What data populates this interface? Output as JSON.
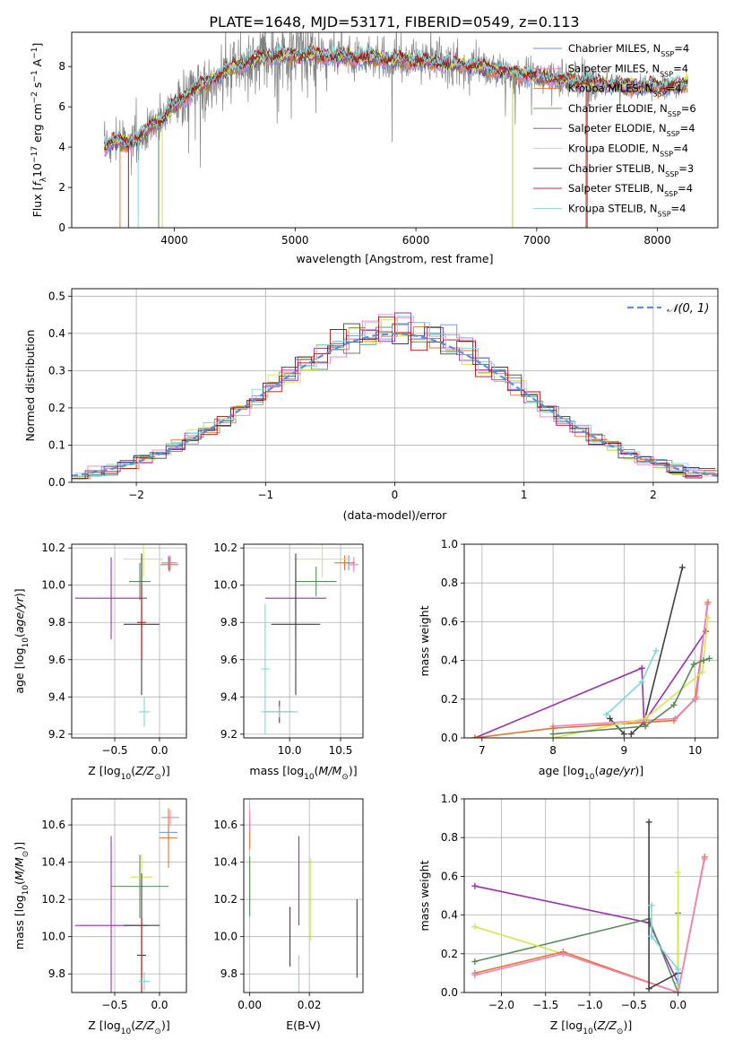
{
  "figure_title": "PLATE=1648, MJD=53171, FIBERID=0549, z=0.113",
  "colors": {
    "chabrier_miles": "#6495ed",
    "salpeter_miles": "#f080c0",
    "kroupa_miles": "#e8742a",
    "chabrier_elodie": "#5a8a5a",
    "salpeter_elodie": "#9a2fb0",
    "kroupa_elodie": "#d4e84a",
    "chabrier_stelib": "#404040",
    "salpeter_stelib": "#b01010",
    "kroupa_stelib": "#7fd8d8",
    "data": "#808080",
    "gauss": "#5b8fd9"
  },
  "chart_data": [
    {
      "id": "spectrum",
      "type": "line",
      "xlabel": "wavelength [Angstrom, rest frame]",
      "ylabel": "Flux [f_λ10^-17 erg cm^-2 s^-1 A^-1]",
      "xlim": [
        3150,
        8500
      ],
      "ylim": [
        0,
        9.7
      ],
      "xticks": [
        4000,
        5000,
        6000,
        7000,
        8000
      ],
      "yticks": [
        0,
        2,
        4,
        6,
        8
      ],
      "legend": [
        {
          "label": "Chabrier MILES, N_SSP=4",
          "key": "chabrier_miles"
        },
        {
          "label": "Salpeter MILES, N_SSP=4",
          "key": "salpeter_miles"
        },
        {
          "label": "Kroupa MILES, N_SSP=4",
          "key": "kroupa_miles"
        },
        {
          "label": "Chabrier ELODIE, N_SSP=6",
          "key": "chabrier_elodie"
        },
        {
          "label": "Salpeter ELODIE, N_SSP=4",
          "key": "salpeter_elodie"
        },
        {
          "label": "Kroupa ELODIE, N_SSP=4",
          "key": "kroupa_elodie"
        },
        {
          "label": "Chabrier STELIB, N_SSP=3",
          "key": "chabrier_stelib"
        },
        {
          "label": "Salpeter STELIB, N_SSP=4",
          "key": "salpeter_stelib"
        },
        {
          "label": "Kroupa STELIB, N_SSP=4",
          "key": "kroupa_stelib"
        }
      ],
      "continuum": [
        [
          3420,
          4.0
        ],
        [
          3500,
          4.3
        ],
        [
          3600,
          4.2
        ],
        [
          3700,
          4.4
        ],
        [
          3800,
          5.0
        ],
        [
          3900,
          5.4
        ],
        [
          4000,
          6.0
        ],
        [
          4100,
          6.5
        ],
        [
          4200,
          7.0
        ],
        [
          4300,
          7.3
        ],
        [
          4400,
          7.7
        ],
        [
          4500,
          8.0
        ],
        [
          4600,
          8.2
        ],
        [
          4700,
          8.4
        ],
        [
          4800,
          8.5
        ],
        [
          4900,
          8.55
        ],
        [
          5000,
          8.6
        ],
        [
          5200,
          8.55
        ],
        [
          5400,
          8.5
        ],
        [
          5600,
          8.4
        ],
        [
          5800,
          8.35
        ],
        [
          6000,
          8.25
        ],
        [
          6200,
          8.15
        ],
        [
          6400,
          8.05
        ],
        [
          6600,
          7.9
        ],
        [
          6800,
          7.7
        ],
        [
          7000,
          7.5
        ],
        [
          7200,
          7.35
        ],
        [
          7400,
          7.2
        ],
        [
          7600,
          7.1
        ],
        [
          7800,
          7.0
        ],
        [
          8000,
          7.0
        ],
        [
          8250,
          7.1
        ]
      ]
    },
    {
      "id": "residuals",
      "type": "histogram",
      "xlabel": "(data-model)/error",
      "ylabel": "Normed distribution",
      "xlim": [
        -2.5,
        2.5
      ],
      "ylim": [
        0,
        0.52
      ],
      "xticks": [
        -2,
        -1,
        0,
        1,
        2
      ],
      "yticks": [
        0.0,
        0.1,
        0.2,
        0.3,
        0.4,
        0.5
      ],
      "legend": "𝒩(0, 1)"
    },
    {
      "id": "z_age",
      "type": "errorbar",
      "xlabel": "Z [log10(Z/Z⊙)]",
      "ylabel": "age [log10(age/yr)]",
      "xlim": [
        -0.98,
        0.3
      ],
      "ylim": [
        9.18,
        10.22
      ],
      "xticks": [
        -0.5,
        0.0
      ],
      "yticks": [
        9.2,
        9.4,
        9.6,
        9.8,
        10.0,
        10.2
      ],
      "points": [
        {
          "key": "chabrier_miles",
          "x": 0.1,
          "y": 10.12,
          "xe": 0.08,
          "ye": 0.04
        },
        {
          "key": "salpeter_miles",
          "x": 0.12,
          "y": 10.12,
          "xe": 0.08,
          "ye": 0.04
        },
        {
          "key": "kroupa_miles",
          "x": 0.11,
          "y": 10.11,
          "xe": 0.1,
          "ye": 0.04
        },
        {
          "key": "chabrier_elodie",
          "x": -0.22,
          "y": 10.02,
          "xe": 0.12,
          "ye": 0.1
        },
        {
          "key": "salpeter_elodie",
          "x": -0.54,
          "y": 9.93,
          "xe": 0.4,
          "ye": 0.22
        },
        {
          "key": "kroupa_elodie",
          "x": -0.18,
          "y": 10.14,
          "xe": 0.22,
          "ye": 0.1
        },
        {
          "key": "chabrier_stelib",
          "x": -0.2,
          "y": 9.79,
          "xe": 0.2,
          "ye": 0.38
        },
        {
          "key": "salpeter_stelib",
          "x": -0.2,
          "y": 9.8,
          "xe": 0.05,
          "ye": 0.2
        },
        {
          "key": "kroupa_stelib",
          "x": -0.17,
          "y": 9.32,
          "xe": 0.06,
          "ye": 0.08
        }
      ]
    },
    {
      "id": "mass_age",
      "type": "errorbar",
      "xlabel": "mass [log10(M/M⊙)]",
      "ylabel": "",
      "xlim": [
        9.55,
        10.72
      ],
      "ylim": [
        9.18,
        10.22
      ],
      "xticks": [
        10.0,
        10.5
      ],
      "yticks": [
        9.2,
        9.4,
        9.6,
        9.8,
        10.0,
        10.2
      ],
      "points": [
        {
          "key": "chabrier_miles",
          "x": 10.58,
          "y": 10.12,
          "xe": 0.06,
          "ye": 0.04
        },
        {
          "key": "salpeter_miles",
          "x": 10.63,
          "y": 10.11,
          "xe": 0.05,
          "ye": 0.04
        },
        {
          "key": "kroupa_miles",
          "x": 10.54,
          "y": 10.12,
          "xe": 0.1,
          "ye": 0.04
        },
        {
          "key": "chabrier_elodie",
          "x": 10.26,
          "y": 10.02,
          "xe": 0.2,
          "ye": 0.08
        },
        {
          "key": "salpeter_elodie",
          "x": 10.06,
          "y": 9.93,
          "xe": 0.3,
          "ye": 0.2
        },
        {
          "key": "kroupa_elodie",
          "x": 10.32,
          "y": 10.14,
          "xe": 0.28,
          "ye": 0.1
        },
        {
          "key": "chabrier_stelib",
          "x": 10.06,
          "y": 9.79,
          "xe": 0.24,
          "ye": 0.38
        },
        {
          "key": "salpeter_stelib",
          "x": 9.9,
          "y": 9.32,
          "xe": 0.15,
          "ye": 0.06
        },
        {
          "key": "kroupa_stelib",
          "x": 9.76,
          "y": 9.55,
          "xe": 0.04,
          "ye": 0.35
        },
        {
          "key": "kroupa_stelib",
          "x": 9.9,
          "y": 9.32,
          "xe": 0.18,
          "ye": 0.03
        }
      ]
    },
    {
      "id": "age_weight",
      "type": "line",
      "xlabel": "age [log10(age/yr)]",
      "ylabel": "mass weight",
      "xlim": [
        6.75,
        10.32
      ],
      "ylim": [
        0,
        1.0
      ],
      "xticks": [
        7,
        8,
        9,
        10
      ],
      "yticks": [
        0.0,
        0.2,
        0.4,
        0.6,
        0.8,
        1.0
      ],
      "series": [
        {
          "key": "chabrier_stelib",
          "x": [
            9.1,
            9.28,
            9.82
          ],
          "y": [
            0.02,
            0.08,
            0.88
          ]
        },
        {
          "key": "chabrier_stelib",
          "x": [
            8.8,
            9.0
          ],
          "y": [
            0.1,
            0.02
          ]
        },
        {
          "key": "salpeter_elodie",
          "x": [
            6.9,
            9.25,
            9.28,
            10.15
          ],
          "y": [
            0.0,
            0.36,
            0.08,
            0.55
          ]
        },
        {
          "key": "kroupa_stelib",
          "x": [
            8.75,
            9.25,
            9.45
          ],
          "y": [
            0.12,
            0.29,
            0.45
          ]
        },
        {
          "key": "kroupa_miles",
          "x": [
            8.0,
            9.7,
            10.0,
            10.18
          ],
          "y": [
            0.05,
            0.09,
            0.2,
            0.7
          ]
        },
        {
          "key": "salpeter_miles",
          "x": [
            8.0,
            9.72,
            10.02,
            10.17
          ],
          "y": [
            0.06,
            0.1,
            0.21,
            0.69
          ]
        },
        {
          "key": "kroupa_elodie",
          "x": [
            8.0,
            9.3,
            10.1,
            10.18
          ],
          "y": [
            0.0,
            0.1,
            0.34,
            0.62
          ]
        },
        {
          "key": "chabrier_elodie",
          "x": [
            8.0,
            9.3,
            9.7,
            9.98,
            10.12,
            10.2
          ],
          "y": [
            0.02,
            0.06,
            0.17,
            0.38,
            0.4,
            0.41
          ]
        },
        {
          "key": "kroupa_miles",
          "x": [
            6.9,
            8.0
          ],
          "y": [
            0.0,
            0.05
          ]
        }
      ]
    },
    {
      "id": "z_mass",
      "type": "errorbar",
      "xlabel": "Z [log10(Z/Z⊙)]",
      "ylabel": "mass [log10(M/M⊙)]",
      "xlim": [
        -0.98,
        0.3
      ],
      "ylim": [
        9.7,
        10.74
      ],
      "xticks": [
        -0.5,
        0.0
      ],
      "yticks": [
        9.8,
        10.0,
        10.2,
        10.4,
        10.6
      ],
      "points": [
        {
          "key": "chabrier_miles",
          "x": 0.1,
          "y": 10.56,
          "xe": 0.1,
          "ye": 0.04
        },
        {
          "key": "salpeter_miles",
          "x": 0.12,
          "y": 10.64,
          "xe": 0.1,
          "ye": 0.04
        },
        {
          "key": "kroupa_miles",
          "x": 0.1,
          "y": 10.53,
          "xe": 0.1,
          "ye": 0.16
        },
        {
          "key": "chabrier_elodie",
          "x": -0.22,
          "y": 10.27,
          "xe": 0.32,
          "ye": 0.17
        },
        {
          "key": "salpeter_elodie",
          "x": -0.54,
          "y": 10.06,
          "xe": 0.4,
          "ye": 0.48
        },
        {
          "key": "kroupa_elodie",
          "x": -0.2,
          "y": 10.32,
          "xe": 0.12,
          "ye": 0.12
        },
        {
          "key": "chabrier_stelib",
          "x": -0.2,
          "y": 10.06,
          "xe": 0.2,
          "ye": 0.28
        },
        {
          "key": "salpeter_stelib",
          "x": -0.2,
          "y": 9.9,
          "xe": 0.05,
          "ye": 0.2
        },
        {
          "key": "kroupa_stelib",
          "x": -0.17,
          "y": 9.76,
          "xe": 0.06,
          "ye": 0.05
        }
      ]
    },
    {
      "id": "ebv_mass",
      "type": "errorbar",
      "xlabel": "E(B-V)",
      "ylabel": "",
      "xlim": [
        -0.002,
        0.038
      ],
      "ylim": [
        9.7,
        10.74
      ],
      "xticks": [
        0.0,
        0.02
      ],
      "yticks": [
        9.8,
        10.0,
        10.2,
        10.4,
        10.6
      ],
      "points": [
        {
          "key": "kroupa_miles",
          "x": 0.0,
          "y": 10.55,
          "xe": 0,
          "ye": 0.08
        },
        {
          "key": "salpeter_miles",
          "x": 0.0,
          "y": 10.62,
          "xe": 0,
          "ye": 0.06
        },
        {
          "key": "chabrier_elodie",
          "x": 0.0,
          "y": 10.27,
          "xe": 0,
          "ye": 0.16
        },
        {
          "key": "salpeter_elodie",
          "x": 0.0165,
          "y": 10.3,
          "xe": 0,
          "ye": 0.24
        },
        {
          "key": "kroupa_elodie",
          "x": 0.0205,
          "y": 10.2,
          "xe": 0,
          "ye": 0.22
        },
        {
          "key": "chabrier_stelib",
          "x": 0.036,
          "y": 9.99,
          "xe": 0,
          "ye": 0.21
        },
        {
          "key": "salpeter_stelib",
          "x": 0.0135,
          "y": 10.0,
          "xe": 0,
          "ye": 0.16
        },
        {
          "key": "kroupa_stelib",
          "x": 0.0165,
          "y": 9.8,
          "xe": 0,
          "ye": 0.1
        }
      ]
    },
    {
      "id": "z_weight",
      "type": "line",
      "xlabel": "Z [log10(Z/Z⊙)]",
      "ylabel": "mass weight",
      "xlim": [
        -2.42,
        0.45
      ],
      "ylim": [
        0,
        1.0
      ],
      "xticks": [
        -2.0,
        -1.5,
        -1.0,
        -0.5,
        0.0
      ],
      "yticks": [
        0.0,
        0.2,
        0.4,
        0.6,
        0.8,
        1.0
      ],
      "series": [
        {
          "key": "salpeter_elodie",
          "x": [
            -2.3,
            -0.33,
            0.0
          ],
          "y": [
            0.55,
            0.36,
            0.05
          ]
        },
        {
          "key": "chabrier_elodie",
          "x": [
            -2.3,
            -0.33,
            0.0,
            0.0
          ],
          "y": [
            0.16,
            0.38,
            0.0,
            0.41
          ]
        },
        {
          "key": "kroupa_elodie",
          "x": [
            -2.3,
            -1.3,
            0.0,
            0.0
          ],
          "y": [
            0.34,
            0.2,
            0.0,
            0.62
          ]
        },
        {
          "key": "kroupa_miles",
          "x": [
            -2.3,
            -1.3,
            0.0,
            0.3
          ],
          "y": [
            0.1,
            0.21,
            0.0,
            0.7
          ]
        },
        {
          "key": "salpeter_miles",
          "x": [
            -2.3,
            -1.3,
            0.0,
            0.3
          ],
          "y": [
            0.09,
            0.2,
            0.0,
            0.69
          ]
        },
        {
          "key": "chabrier_stelib",
          "x": [
            -0.33,
            -0.33,
            0.0
          ],
          "y": [
            0.88,
            0.02,
            0.1
          ]
        },
        {
          "key": "kroupa_stelib",
          "x": [
            -0.3,
            -0.3,
            0.0,
            0.0
          ],
          "y": [
            0.45,
            0.29,
            0.12,
            0.05
          ]
        }
      ]
    }
  ]
}
